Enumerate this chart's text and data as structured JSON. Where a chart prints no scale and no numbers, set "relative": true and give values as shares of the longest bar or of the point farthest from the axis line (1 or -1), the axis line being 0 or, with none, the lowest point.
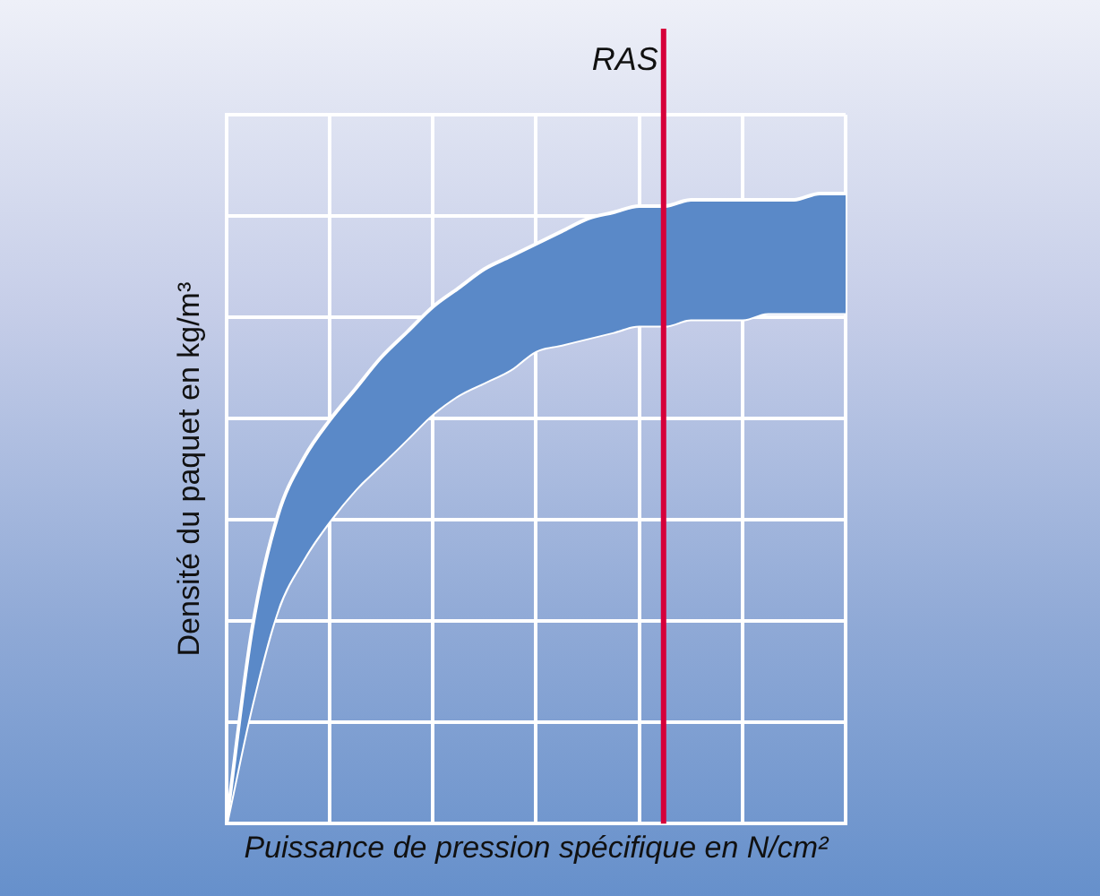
{
  "chart_data": {
    "type": "area",
    "relative": true,
    "xlabel": "Puissance de pression spécifique en N/cm²",
    "ylabel": "Densité du paquet en kg/m³",
    "grid": true,
    "legend": false,
    "tick_labels": false,
    "marker": "none",
    "categories": [
      null,
      null,
      null,
      null,
      null,
      null,
      null,
      null,
      null,
      null,
      null,
      null,
      null,
      null,
      null,
      null,
      null,
      null,
      null,
      null,
      null,
      null,
      null,
      null,
      null
    ],
    "series": [
      {
        "color": "#5a89c8",
        "values": [
          0,
          0.31,
          0.49,
          0.58,
          0.64,
          0.69,
          0.74,
          0.78,
          0.82,
          0.85,
          0.88,
          0.9,
          0.92,
          0.94,
          0.96,
          0.97,
          0.98,
          0.98,
          0.99,
          0.99,
          0.99,
          0.99,
          0.99,
          1,
          1
        ]
      },
      {
        "type": "line",
        "color": "#ffffff",
        "values": [
          0,
          0.19,
          0.34,
          0.42,
          0.48,
          0.53,
          0.57,
          0.61,
          0.65,
          0.68,
          0.7,
          0.72,
          0.75,
          0.76,
          0.77,
          0.78,
          0.79,
          0.79,
          0.8,
          0.8,
          0.8,
          0.81,
          0.81,
          0.81,
          0.81
        ]
      }
    ],
    "annotations": [
      "RAS"
    ]
  }
}
